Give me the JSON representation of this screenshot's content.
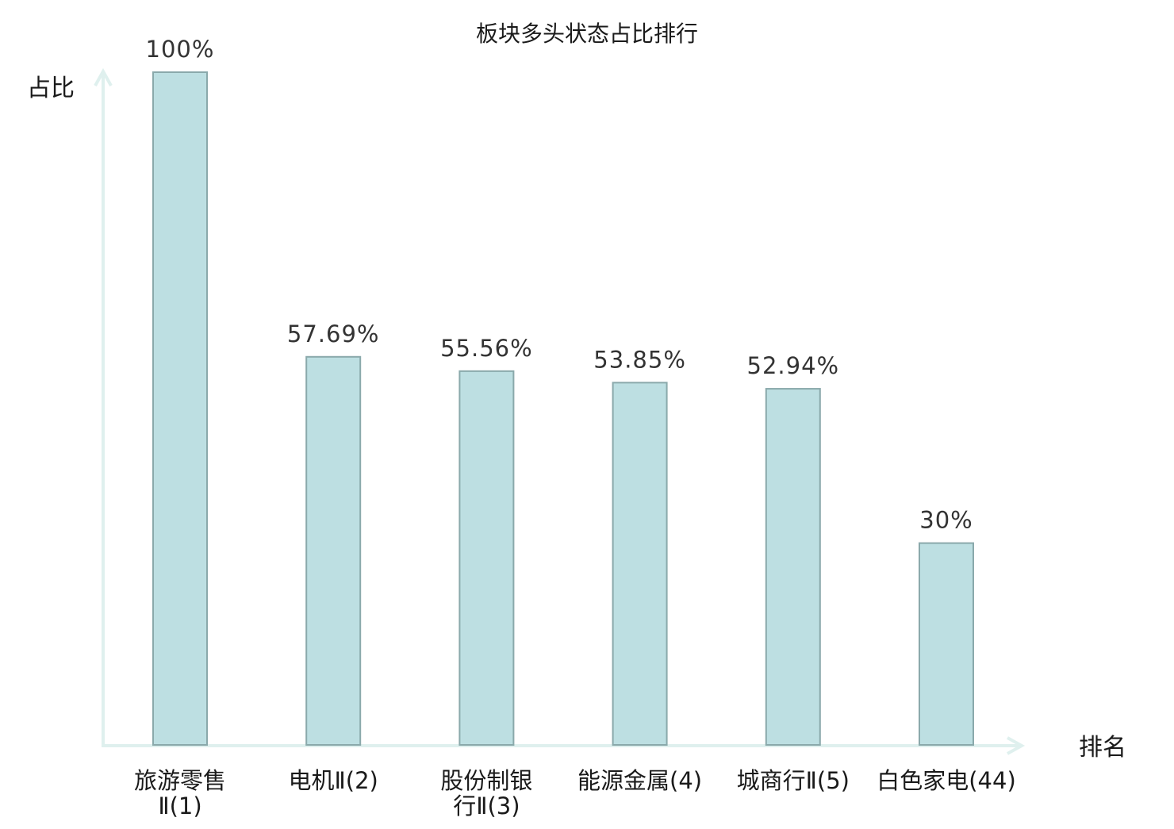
{
  "chart_data": {
    "type": "bar",
    "title": "板块多头状态占比排行",
    "ylabel": "占比",
    "xlabel": "排名",
    "ylim": [
      0,
      100
    ],
    "grid": false,
    "categories": [
      {
        "name_lines": [
          "旅游零售",
          "Ⅱ(1)"
        ],
        "highlight": false
      },
      {
        "name_lines": [
          "电机Ⅱ(2)"
        ],
        "highlight": false
      },
      {
        "name_lines": [
          "股份制银",
          "行Ⅱ(3)"
        ],
        "highlight": false
      },
      {
        "name_lines": [
          "能源金属(4)"
        ],
        "highlight": false
      },
      {
        "name_lines": [
          "城商行Ⅱ(5)"
        ],
        "highlight": false
      },
      {
        "name_lines": [
          "白色家电(44)"
        ],
        "highlight": true
      }
    ],
    "values": [
      100,
      57.69,
      55.56,
      53.85,
      52.94,
      30
    ],
    "value_labels": [
      "100%",
      "57.69%",
      "55.56%",
      "53.85%",
      "52.94%",
      "30%"
    ]
  },
  "colors": {
    "bar_fill": "#bddfe2",
    "bar_stroke": "#8aa9ab",
    "axis": "#dff0ee",
    "text": "#1a1a1a",
    "highlight": "#e01010"
  }
}
